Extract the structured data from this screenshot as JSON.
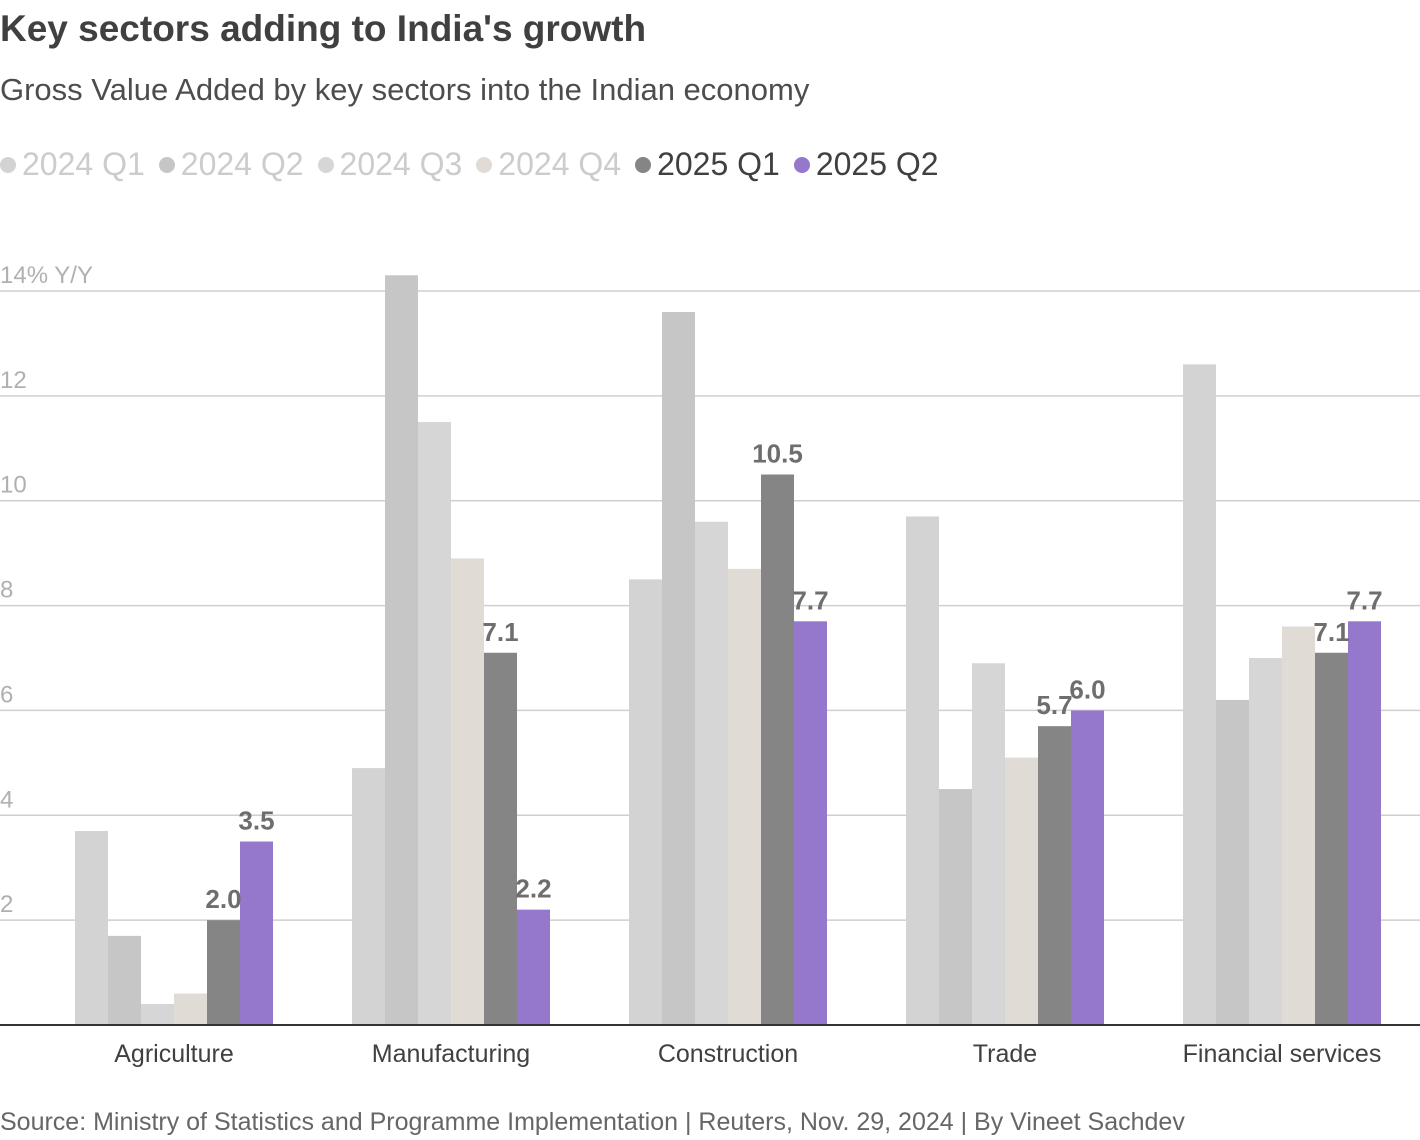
{
  "header": {
    "title": "Key sectors adding to India's growth",
    "subtitle": "Gross Value Added by key sectors into the Indian economy"
  },
  "footer": {
    "source": "Source: Ministry of Statistics and Programme Implementation | Reuters, Nov. 29, 2024 | By Vineet Sachdev"
  },
  "chart_data": {
    "type": "bar",
    "title": "Key sectors adding to India's growth",
    "subtitle": "Gross Value Added by key sectors into the Indian economy",
    "ylabel": "14% Y/Y",
    "ylim": [
      0,
      14
    ],
    "yticks": [
      {
        "value": 2,
        "label": "2"
      },
      {
        "value": 4,
        "label": "4"
      },
      {
        "value": 6,
        "label": "6"
      },
      {
        "value": 8,
        "label": "8"
      },
      {
        "value": 10,
        "label": "10"
      },
      {
        "value": 12,
        "label": "12"
      },
      {
        "value": 14,
        "label": "14% Y/Y"
      }
    ],
    "grid": true,
    "legend_position": "top-left",
    "categories": [
      "Agriculture",
      "Manufacturing",
      "Construction",
      "Trade",
      "Financial services"
    ],
    "series": [
      {
        "name": "2024 Q1",
        "color": "#d3d3d3",
        "legend_text_color": "#cccccc",
        "values": [
          3.7,
          4.9,
          8.5,
          9.7,
          12.6
        ],
        "show_labels": false
      },
      {
        "name": "2024 Q2",
        "color": "#c6c6c6",
        "legend_text_color": "#cccccc",
        "values": [
          1.7,
          14.3,
          13.6,
          4.5,
          6.2
        ],
        "show_labels": false
      },
      {
        "name": "2024 Q3",
        "color": "#d6d6d6",
        "legend_text_color": "#cccccc",
        "values": [
          0.4,
          11.5,
          9.6,
          6.9,
          7.0
        ],
        "show_labels": false
      },
      {
        "name": "2024 Q4",
        "color": "#e0dbd5",
        "legend_text_color": "#cccccc",
        "values": [
          0.6,
          8.9,
          8.7,
          5.1,
          7.6
        ],
        "show_labels": false
      },
      {
        "name": "2025 Q1",
        "color": "#858585",
        "legend_text_color": "#404040",
        "values": [
          2.0,
          7.1,
          10.5,
          5.7,
          7.1
        ],
        "labels": [
          "2.0",
          "7.1",
          "10.5",
          "5.7",
          "7.1"
        ],
        "show_labels": true
      },
      {
        "name": "2025 Q2",
        "color": "#9578cc",
        "legend_text_color": "#404040",
        "values": [
          3.5,
          2.2,
          7.7,
          6.0,
          7.7
        ],
        "labels": [
          "3.5",
          "2.2",
          "7.7",
          "6.0",
          "7.7"
        ],
        "show_labels": true
      }
    ]
  }
}
